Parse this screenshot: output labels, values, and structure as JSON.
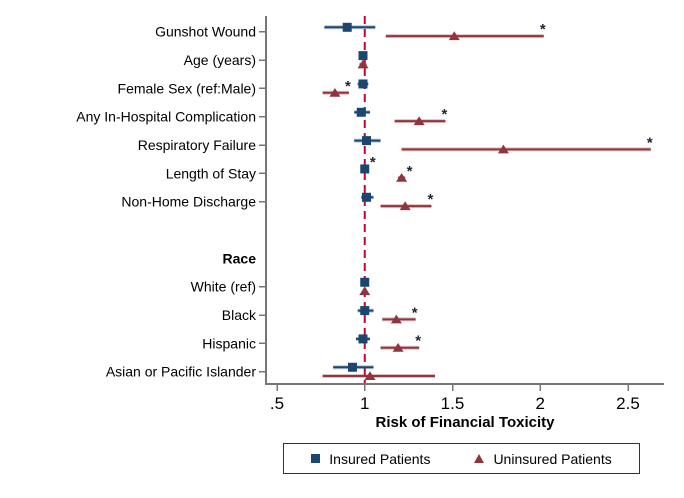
{
  "chart_data": {
    "type": "scatter",
    "subtype": "forest-plot-with-ci",
    "title": "",
    "xlabel": "Risk of Financial Toxicity",
    "x_tick_labels": [
      ".5",
      "1",
      "1.5",
      "2",
      "2.5"
    ],
    "x_tick_values": [
      0.5,
      1.0,
      1.5,
      2.0,
      2.5
    ],
    "xlim": [
      0.44,
      2.7
    ],
    "reference_line_x": 1.0,
    "grid": false,
    "legend_position": "bottom",
    "significance_marker": "*",
    "series_names": [
      "Insured Patients",
      "Uninsured Patients"
    ],
    "rows": [
      {
        "type": "data",
        "label": "Gunshot Wound",
        "insured": {
          "est": 0.9,
          "lo": 0.77,
          "hi": 1.06,
          "sig": false
        },
        "uninsured": {
          "est": 1.51,
          "lo": 1.12,
          "hi": 2.02,
          "sig": true
        }
      },
      {
        "type": "data",
        "label": "Age (years)",
        "insured": {
          "est": 0.99,
          "lo": 0.98,
          "hi": 1.01,
          "sig": false
        },
        "uninsured": {
          "est": 0.99,
          "lo": 0.97,
          "hi": 1.01,
          "sig": false
        }
      },
      {
        "type": "data",
        "label": "Female Sex (ref:Male)",
        "insured": {
          "est": 0.99,
          "lo": 0.96,
          "hi": 1.02,
          "sig": false
        },
        "uninsured": {
          "est": 0.83,
          "lo": 0.76,
          "hi": 0.91,
          "sig": true
        }
      },
      {
        "type": "data",
        "label": "Any In-Hospital Complication",
        "insured": {
          "est": 0.98,
          "lo": 0.94,
          "hi": 1.03,
          "sig": false
        },
        "uninsured": {
          "est": 1.31,
          "lo": 1.17,
          "hi": 1.46,
          "sig": true
        }
      },
      {
        "type": "data",
        "label": "Respiratory Failure",
        "insured": {
          "est": 1.01,
          "lo": 0.94,
          "hi": 1.09,
          "sig": false
        },
        "uninsured": {
          "est": 1.79,
          "lo": 1.21,
          "hi": 2.63,
          "sig": true
        }
      },
      {
        "type": "data",
        "label": "Length of Stay",
        "insured": {
          "est": 1.0,
          "lo": 0.99,
          "hi": 1.01,
          "sig": true
        },
        "uninsured": {
          "est": 1.21,
          "lo": 1.19,
          "hi": 1.23,
          "sig": true
        }
      },
      {
        "type": "data",
        "label": "Non-Home Discharge",
        "insured": {
          "est": 1.01,
          "lo": 0.98,
          "hi": 1.05,
          "sig": false
        },
        "uninsured": {
          "est": 1.23,
          "lo": 1.09,
          "hi": 1.38,
          "sig": true
        }
      },
      {
        "type": "spacer",
        "label": ""
      },
      {
        "type": "header",
        "label": "Race"
      },
      {
        "type": "data",
        "label": "White (ref)",
        "insured": {
          "est": 1.0,
          "lo": null,
          "hi": null,
          "sig": false
        },
        "uninsured": {
          "est": 1.0,
          "lo": null,
          "hi": null,
          "sig": false
        }
      },
      {
        "type": "data",
        "label": "Black",
        "insured": {
          "est": 1.0,
          "lo": 0.96,
          "hi": 1.05,
          "sig": false
        },
        "uninsured": {
          "est": 1.18,
          "lo": 1.1,
          "hi": 1.29,
          "sig": true
        }
      },
      {
        "type": "data",
        "label": "Hispanic",
        "insured": {
          "est": 0.99,
          "lo": 0.95,
          "hi": 1.03,
          "sig": false
        },
        "uninsured": {
          "est": 1.19,
          "lo": 1.09,
          "hi": 1.31,
          "sig": true
        }
      },
      {
        "type": "data",
        "label": "Asian or Pacific Islander",
        "insured": {
          "est": 0.93,
          "lo": 0.82,
          "hi": 1.05,
          "sig": false
        },
        "uninsured": {
          "est": 1.03,
          "lo": 0.76,
          "hi": 1.4,
          "sig": false
        }
      }
    ]
  },
  "legend": {
    "items": [
      {
        "label": "Insured Patients",
        "marker": "square-icon",
        "color": "#1a476f"
      },
      {
        "label": "Uninsured Patients",
        "marker": "triangle-icon",
        "color": "#90353b"
      }
    ]
  },
  "colors": {
    "insured": "#1a476f",
    "uninsured": "#90353b",
    "reference_line": "#c10534",
    "axis": "#767676",
    "text": "#000000",
    "asterisk": "#1a2433",
    "legend_border": "#333333"
  }
}
